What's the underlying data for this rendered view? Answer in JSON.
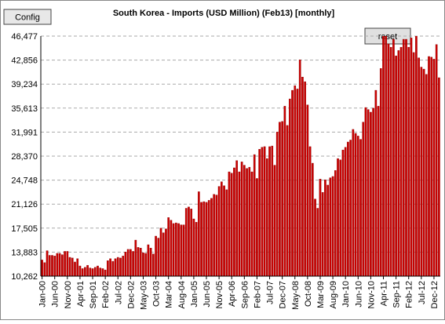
{
  "buttons": {
    "config": "Config",
    "reset": "reset"
  },
  "chart_data": {
    "type": "bar",
    "title": "South Korea - Imports (USD Million) (Feb13) [monthly]",
    "color": "#cc0000",
    "grid": true,
    "ylim": [
      10262,
      46477
    ],
    "yticks": [
      {
        "value": 10262,
        "label": "10,262"
      },
      {
        "value": 13883,
        "label": "13,883"
      },
      {
        "value": 17505,
        "label": "17,505"
      },
      {
        "value": 21126,
        "label": "21,126"
      },
      {
        "value": 24748,
        "label": "24,748"
      },
      {
        "value": 28370,
        "label": "28,370"
      },
      {
        "value": 31991,
        "label": "31,991"
      },
      {
        "value": 35613,
        "label": "35,613"
      },
      {
        "value": 39234,
        "label": "39,234"
      },
      {
        "value": 42856,
        "label": "42,856"
      },
      {
        "value": 46477,
        "label": "46,477"
      }
    ],
    "categories": [
      "Jan-00",
      null,
      null,
      null,
      null,
      "Jun-00",
      null,
      null,
      null,
      null,
      "Nov-00",
      null,
      null,
      null,
      null,
      "Apr-01",
      null,
      null,
      null,
      null,
      "Sep-01",
      null,
      null,
      null,
      null,
      "Feb-02",
      null,
      null,
      null,
      null,
      "Jul-02",
      null,
      null,
      null,
      null,
      "Dec-02",
      null,
      null,
      null,
      null,
      "May-03",
      null,
      null,
      null,
      null,
      "Oct-03",
      null,
      null,
      null,
      null,
      "Mar-04",
      null,
      null,
      null,
      null,
      "Aug-04",
      null,
      null,
      null,
      null,
      "Jan-05",
      null,
      null,
      null,
      null,
      "Jun-05",
      null,
      null,
      null,
      null,
      "Nov-05",
      null,
      null,
      null,
      null,
      "Apr-06",
      null,
      null,
      null,
      null,
      "Sep-06",
      null,
      null,
      null,
      null,
      "Feb-07",
      null,
      null,
      null,
      null,
      "Jul-07",
      null,
      null,
      null,
      null,
      "Dec-07",
      null,
      null,
      null,
      null,
      "May-08",
      null,
      null,
      null,
      null,
      "Oct-08",
      null,
      null,
      null,
      null,
      "Mar-09",
      null,
      null,
      null,
      null,
      "Aug-09",
      null,
      null,
      null,
      null,
      "Jan-10",
      null,
      null,
      null,
      null,
      "Jun-10",
      null,
      null,
      null,
      null,
      "Nov-10",
      null,
      null,
      null,
      null,
      "Apr-11",
      null,
      null,
      null,
      null,
      "Sep-11",
      null,
      null,
      null,
      null,
      "Feb-12",
      null,
      null,
      null,
      null,
      "Jul-12",
      null,
      null,
      null,
      null,
      "Dec-12",
      null,
      null
    ],
    "values": [
      12700,
      12300,
      14100,
      13400,
      13400,
      13300,
      13700,
      13700,
      13500,
      14000,
      14000,
      13100,
      13000,
      12400,
      12900,
      11800,
      11400,
      11600,
      11900,
      11500,
      11400,
      11600,
      11800,
      11500,
      11400,
      11200,
      12600,
      12900,
      12500,
      12900,
      13100,
      13000,
      13300,
      13900,
      14300,
      14300,
      14000,
      15700,
      14600,
      14500,
      13800,
      13700,
      15000,
      14500,
      13600,
      16300,
      16000,
      17500,
      16800,
      17400,
      19100,
      18700,
      18200,
      18300,
      18200,
      18000,
      18000,
      20500,
      20700,
      20400,
      18900,
      18400,
      23000,
      21400,
      21500,
      21400,
      21700,
      22000,
      22600,
      22500,
      23800,
      24500,
      23900,
      23300,
      26000,
      25800,
      26600,
      27700,
      26000,
      27500,
      27000,
      26500,
      26700,
      26000,
      28600,
      25000,
      29400,
      29700,
      29800,
      28000,
      29800,
      29900,
      27000,
      32000,
      33500,
      33600,
      35900,
      33000,
      37000,
      38300,
      39000,
      38500,
      42900,
      40300,
      39600,
      36100,
      29800,
      27300,
      21900,
      20500,
      24900,
      22900,
      24800,
      24000,
      25100,
      25300,
      26200,
      28000,
      27800,
      29300,
      29700,
      30500,
      30800,
      32400,
      31800,
      31400,
      30900,
      33500,
      35700,
      35400,
      35000,
      35600,
      38300,
      35900,
      41600,
      47000,
      46800,
      45300,
      44800,
      46000,
      43500,
      44300,
      44800,
      46000,
      46000,
      44800,
      46200,
      44000,
      46500,
      43200,
      41800,
      41500,
      40700,
      43400,
      43300,
      43000,
      45200,
      40200
    ]
  }
}
